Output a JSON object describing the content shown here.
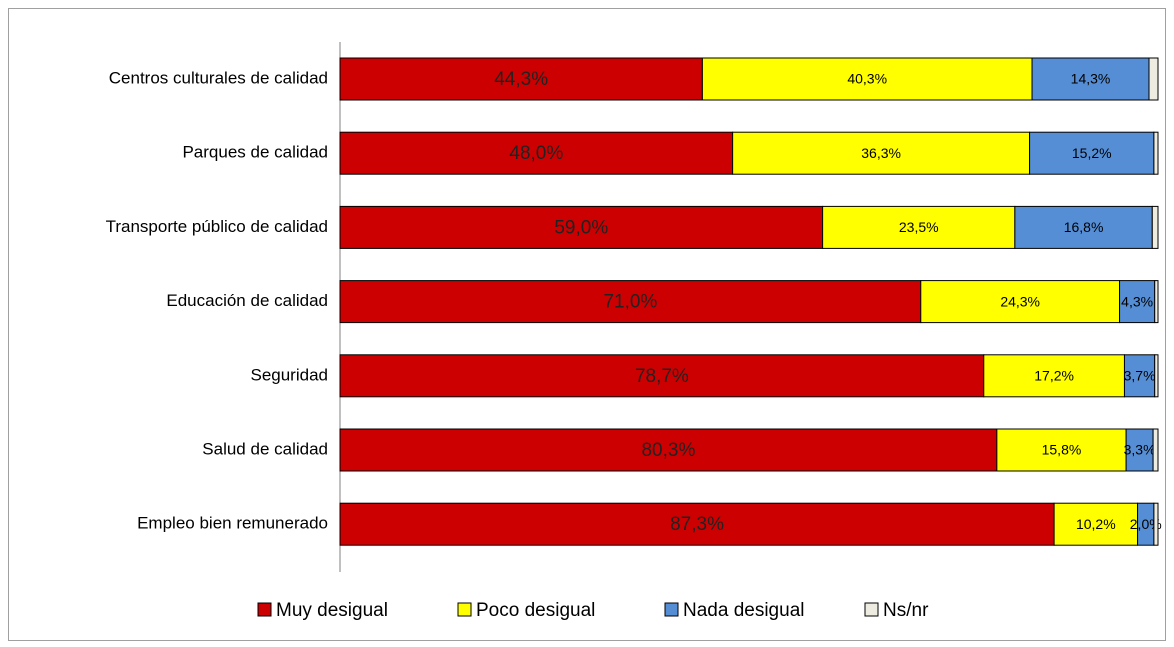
{
  "chart_data": {
    "type": "stacked-bar-horizontal",
    "categories": [
      "Centros culturales de calidad",
      "Parques de calidad",
      "Transporte público de calidad",
      "Educación de  calidad",
      "Seguridad",
      "Salud de calidad",
      "Empleo bien remunerado"
    ],
    "xlim": [
      0,
      100
    ],
    "legend": "bottom",
    "series": [
      {
        "name": "Muy desigual",
        "color": "#cc0000",
        "values": [
          44.3,
          48.0,
          59.0,
          71.0,
          78.7,
          80.3,
          87.3
        ],
        "value_labels": [
          "44,3%",
          "48,0%",
          "59,0%",
          "71,0%",
          "78,7%",
          "80,3%",
          "87,3%"
        ]
      },
      {
        "name": "Poco desigual",
        "color": "#ffff00",
        "values": [
          40.3,
          36.3,
          23.5,
          24.3,
          17.2,
          15.8,
          10.2
        ],
        "value_labels": [
          "40,3%",
          "36,3%",
          "23,5%",
          "24,3%",
          "17,2%",
          "15,8%",
          "10,2%"
        ]
      },
      {
        "name": "Nada desigual",
        "color": "#558ed5",
        "values": [
          14.3,
          15.2,
          16.8,
          4.3,
          3.7,
          3.3,
          2.0
        ],
        "value_labels": [
          "14,3%",
          "15,2%",
          "16,8%",
          "4,3%",
          "3,7%",
          "3,3%",
          "2,0%"
        ]
      },
      {
        "name": "Ns/nr",
        "color": "#eeece1",
        "values": [
          1.1,
          0.5,
          0.7,
          0.4,
          0.4,
          0.6,
          0.5
        ]
      }
    ]
  }
}
